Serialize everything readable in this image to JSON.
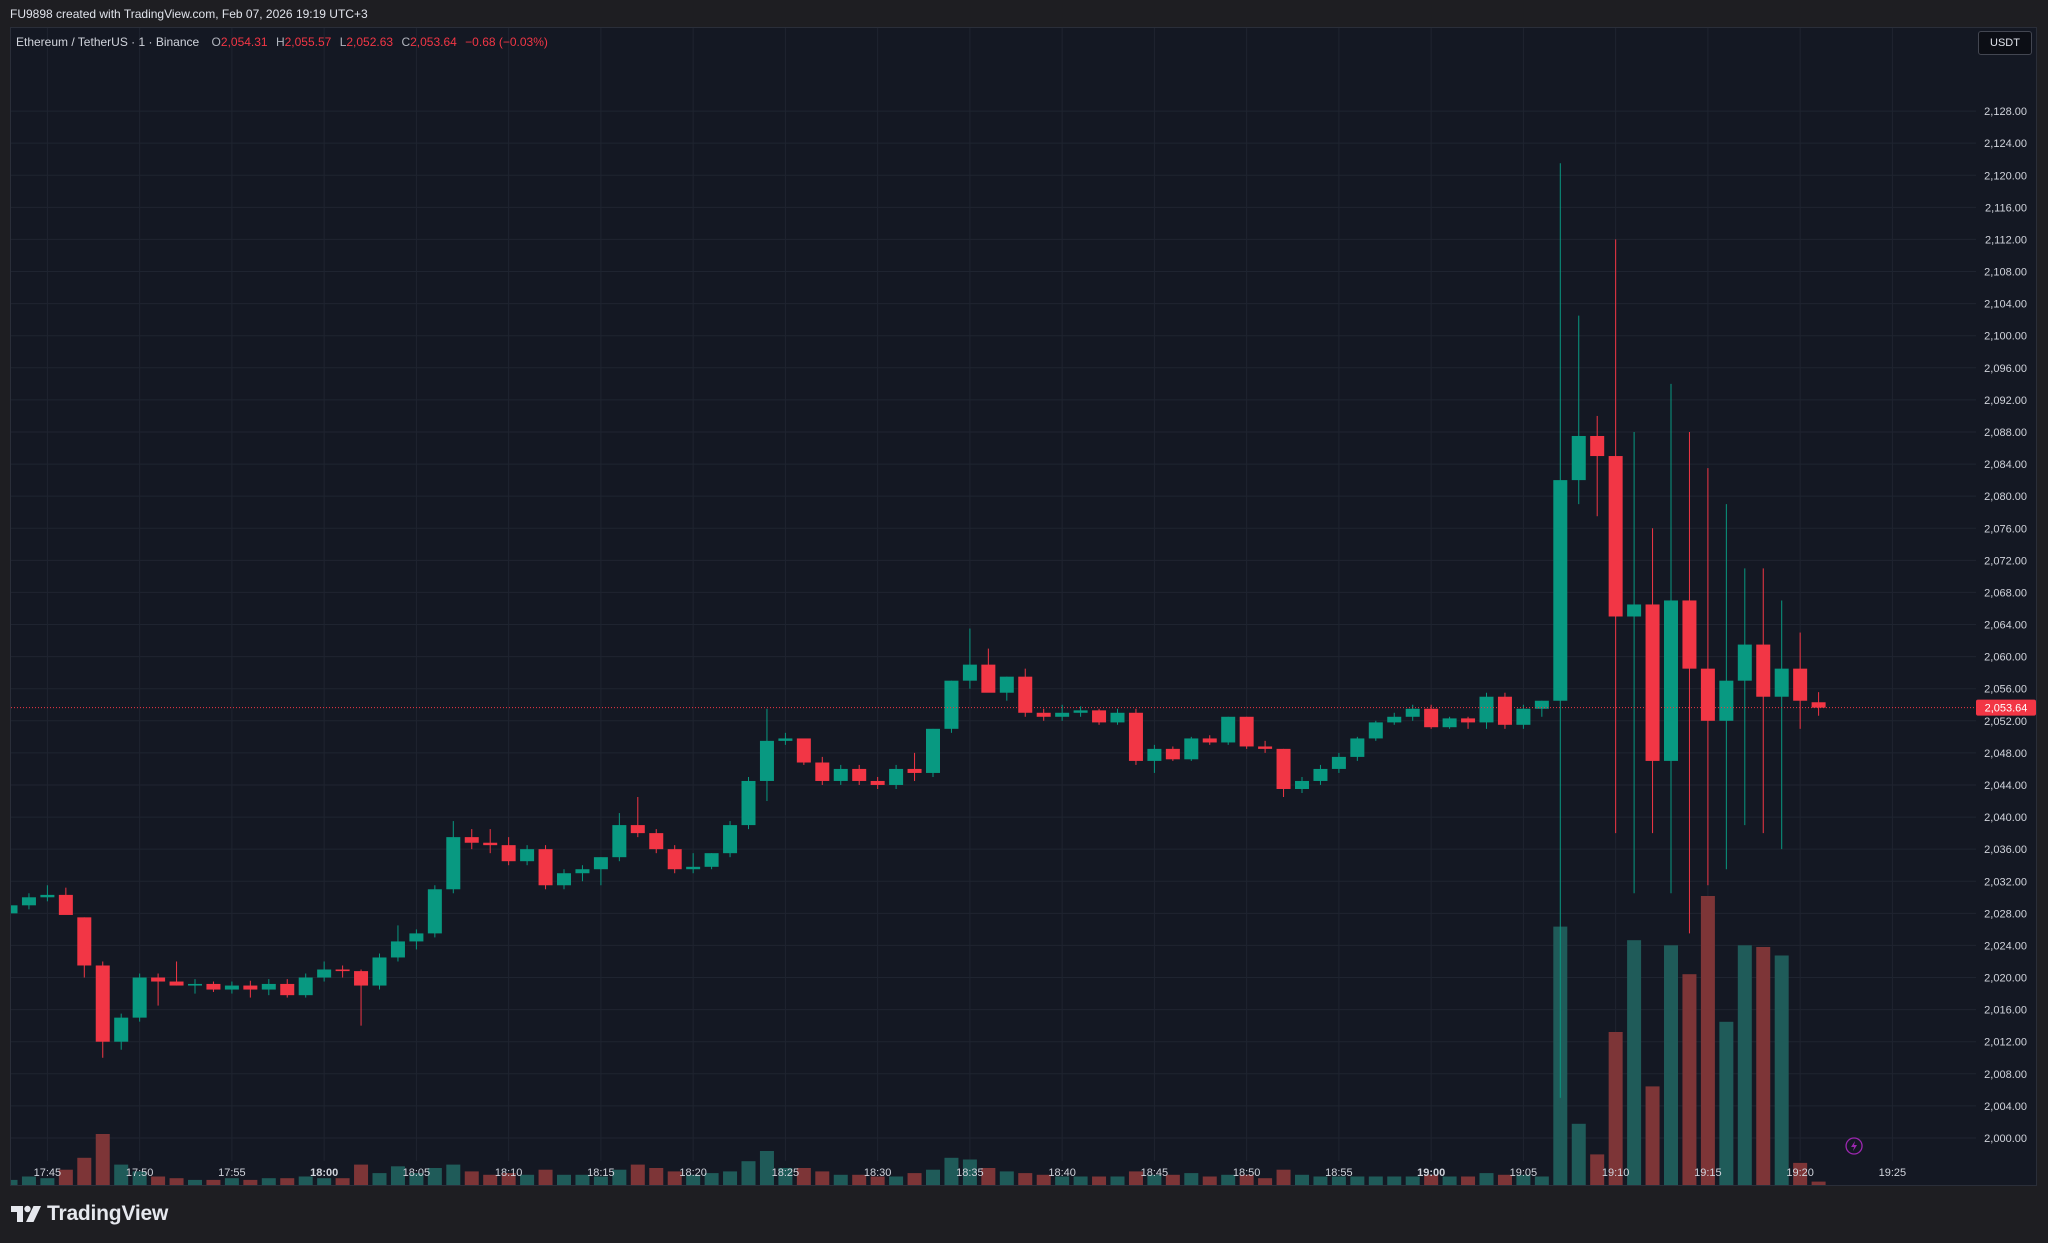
{
  "header": {
    "caption": "FU9898 created with TradingView.com, Feb 07, 2026 19:19 UTC+3"
  },
  "legend": {
    "symbol": "Ethereum / TetherUS · 1 · Binance",
    "o_label": "O",
    "o_value": "2,054.31",
    "h_label": "H",
    "h_value": "2,055.57",
    "l_label": "L",
    "l_value": "2,052.63",
    "c_label": "C",
    "c_value": "2,053.64",
    "change": "−0.68 (−0.03%)"
  },
  "currency_button": "USDT",
  "footer": {
    "brand": "TradingView"
  },
  "colors": {
    "up": "#089981",
    "down": "#f23645",
    "up_volume": "#1f5b59",
    "down_volume": "#7d3537",
    "background": "#141823",
    "grid": "#1f2430"
  },
  "chart_data": {
    "type": "candlestick",
    "interval": "1 minute",
    "x_start": "17:43",
    "y_axis": {
      "min": 1999,
      "max": 2131,
      "step": 4,
      "side": "right"
    },
    "y_ticks": [
      "2,128.00",
      "2,124.00",
      "2,120.00",
      "2,116.00",
      "2,112.00",
      "2,108.00",
      "2,104.00",
      "2,100.00",
      "2,096.00",
      "2,092.00",
      "2,088.00",
      "2,084.00",
      "2,080.00",
      "2,076.00",
      "2,072.00",
      "2,068.00",
      "2,064.00",
      "2,060.00",
      "2,056.00",
      "2,052.00",
      "2,048.00",
      "2,044.00",
      "2,040.00",
      "2,036.00",
      "2,032.00",
      "2,028.00",
      "2,024.00",
      "2,020.00",
      "2,016.00",
      "2,012.00",
      "2,008.00",
      "2,004.00",
      "2,000.00"
    ],
    "x_ticks": [
      {
        "t": "17:45",
        "i": 2,
        "bold": false
      },
      {
        "t": "17:50",
        "i": 7,
        "bold": false
      },
      {
        "t": "17:55",
        "i": 12,
        "bold": false
      },
      {
        "t": "18:00",
        "i": 17,
        "bold": true
      },
      {
        "t": "18:05",
        "i": 22,
        "bold": false
      },
      {
        "t": "18:10",
        "i": 27,
        "bold": false
      },
      {
        "t": "18:15",
        "i": 32,
        "bold": false
      },
      {
        "t": "18:20",
        "i": 37,
        "bold": false
      },
      {
        "t": "18:25",
        "i": 42,
        "bold": false
      },
      {
        "t": "18:30",
        "i": 47,
        "bold": false
      },
      {
        "t": "18:35",
        "i": 52,
        "bold": false
      },
      {
        "t": "18:40",
        "i": 57,
        "bold": false
      },
      {
        "t": "18:45",
        "i": 62,
        "bold": false
      },
      {
        "t": "18:50",
        "i": 67,
        "bold": false
      },
      {
        "t": "18:55",
        "i": 72,
        "bold": false
      },
      {
        "t": "19:00",
        "i": 77,
        "bold": true
      },
      {
        "t": "19:05",
        "i": 82,
        "bold": false
      },
      {
        "t": "19:10",
        "i": 87,
        "bold": false
      },
      {
        "t": "19:15",
        "i": 92,
        "bold": false
      },
      {
        "t": "19:20",
        "i": 97,
        "bold": false
      },
      {
        "t": "19:25",
        "i": 102,
        "bold": false
      }
    ],
    "last_price": 2053.64,
    "last_price_label": "2,053.64",
    "candles": [
      [
        2028.0,
        2029.5,
        2027.5,
        2029.0,
        3
      ],
      [
        2029.0,
        2030.5,
        2028.5,
        2030.0,
        5
      ],
      [
        2030.0,
        2031.5,
        2029.5,
        2030.3,
        4
      ],
      [
        2030.3,
        2031.2,
        2028.0,
        2027.8,
        9
      ],
      [
        2027.5,
        2027.5,
        2020.0,
        2021.5,
        16
      ],
      [
        2021.5,
        2022.0,
        2010.0,
        2012.0,
        30
      ],
      [
        2012.0,
        2015.5,
        2011.0,
        2015.0,
        12
      ],
      [
        2015.0,
        2020.5,
        2014.5,
        2020.0,
        8
      ],
      [
        2020.0,
        2020.5,
        2016.5,
        2019.5,
        5
      ],
      [
        2019.5,
        2022.0,
        2019.0,
        2019.0,
        4
      ],
      [
        2019.0,
        2019.8,
        2018.0,
        2019.2,
        3
      ],
      [
        2019.2,
        2019.5,
        2018.2,
        2018.5,
        3
      ],
      [
        2018.5,
        2019.5,
        2018.0,
        2019.0,
        4
      ],
      [
        2019.0,
        2019.6,
        2017.5,
        2018.5,
        3
      ],
      [
        2018.5,
        2019.8,
        2017.8,
        2019.2,
        4
      ],
      [
        2019.2,
        2019.8,
        2017.5,
        2017.8,
        4
      ],
      [
        2017.8,
        2020.5,
        2017.5,
        2020.0,
        5
      ],
      [
        2020.0,
        2022.0,
        2019.5,
        2021.0,
        4
      ],
      [
        2021.0,
        2021.5,
        2020.0,
        2020.8,
        4
      ],
      [
        2020.8,
        2021.0,
        2014.0,
        2019.0,
        12
      ],
      [
        2019.0,
        2023.0,
        2018.5,
        2022.5,
        7
      ],
      [
        2022.5,
        2026.5,
        2022.0,
        2024.5,
        11
      ],
      [
        2024.5,
        2026.0,
        2023.5,
        2025.5,
        7
      ],
      [
        2025.5,
        2031.5,
        2025.0,
        2031.0,
        10
      ],
      [
        2031.0,
        2039.5,
        2030.5,
        2037.5,
        12
      ],
      [
        2037.5,
        2038.5,
        2036.0,
        2036.8,
        8
      ],
      [
        2036.8,
        2038.5,
        2035.5,
        2036.5,
        6
      ],
      [
        2036.5,
        2037.5,
        2034.0,
        2034.5,
        7
      ],
      [
        2034.5,
        2036.5,
        2034.0,
        2036.0,
        6
      ],
      [
        2036.0,
        2036.5,
        2031.0,
        2031.5,
        9
      ],
      [
        2031.5,
        2033.5,
        2031.0,
        2033.0,
        6
      ],
      [
        2033.0,
        2034.0,
        2032.0,
        2033.5,
        6
      ],
      [
        2033.5,
        2035.0,
        2031.5,
        2035.0,
        5
      ],
      [
        2035.0,
        2040.5,
        2034.5,
        2039.0,
        9
      ],
      [
        2039.0,
        2042.5,
        2037.5,
        2038.0,
        12
      ],
      [
        2038.0,
        2038.5,
        2035.5,
        2036.0,
        10
      ],
      [
        2036.0,
        2036.5,
        2033.0,
        2033.5,
        8
      ],
      [
        2033.5,
        2035.5,
        2033.0,
        2033.8,
        6
      ],
      [
        2033.8,
        2035.5,
        2033.5,
        2035.5,
        7
      ],
      [
        2035.5,
        2039.5,
        2035.0,
        2039.0,
        8
      ],
      [
        2039.0,
        2045.0,
        2038.5,
        2044.5,
        14
      ],
      [
        2044.5,
        2053.5,
        2042.0,
        2049.5,
        20
      ],
      [
        2049.5,
        2050.5,
        2049.0,
        2049.8,
        10
      ],
      [
        2049.8,
        2049.5,
        2046.5,
        2046.8,
        10
      ],
      [
        2046.8,
        2047.5,
        2044.0,
        2044.5,
        8
      ],
      [
        2044.5,
        2046.5,
        2044.0,
        2046.0,
        6
      ],
      [
        2046.0,
        2046.5,
        2044.0,
        2044.5,
        6
      ],
      [
        2044.5,
        2045.0,
        2043.5,
        2044.0,
        5
      ],
      [
        2044.0,
        2046.5,
        2043.5,
        2046.0,
        5
      ],
      [
        2046.0,
        2048.0,
        2044.5,
        2045.5,
        7
      ],
      [
        2045.5,
        2051.0,
        2045.0,
        2051.0,
        9
      ],
      [
        2051.0,
        2057.0,
        2050.5,
        2057.0,
        16
      ],
      [
        2057.0,
        2063.5,
        2056.0,
        2059.0,
        15
      ],
      [
        2059.0,
        2061.0,
        2056.0,
        2055.5,
        10
      ],
      [
        2055.5,
        2057.5,
        2054.5,
        2057.5,
        8
      ],
      [
        2057.5,
        2058.5,
        2052.5,
        2053.0,
        7
      ],
      [
        2053.0,
        2053.5,
        2052.0,
        2052.5,
        6
      ],
      [
        2052.5,
        2054.0,
        2052.0,
        2053.0,
        5
      ],
      [
        2053.0,
        2053.8,
        2052.5,
        2053.3,
        5
      ],
      [
        2053.3,
        2053.5,
        2051.5,
        2051.8,
        5
      ],
      [
        2051.8,
        2053.5,
        2051.5,
        2053.0,
        5
      ],
      [
        2053.0,
        2053.5,
        2046.5,
        2047.0,
        8
      ],
      [
        2047.0,
        2049.0,
        2045.5,
        2048.5,
        6
      ],
      [
        2048.5,
        2048.8,
        2047.0,
        2047.2,
        6
      ],
      [
        2047.2,
        2050.0,
        2047.0,
        2049.8,
        7
      ],
      [
        2049.8,
        2050.2,
        2049.0,
        2049.3,
        5
      ],
      [
        2049.3,
        2052.5,
        2049.0,
        2052.5,
        6
      ],
      [
        2052.5,
        2052.5,
        2048.5,
        2048.8,
        6
      ],
      [
        2048.8,
        2049.5,
        2048.0,
        2048.5,
        4
      ],
      [
        2048.5,
        2048.5,
        2042.5,
        2043.5,
        9
      ],
      [
        2043.5,
        2045.0,
        2043.0,
        2044.5,
        6
      ],
      [
        2044.5,
        2046.5,
        2044.0,
        2046.0,
        5
      ],
      [
        2046.0,
        2048.0,
        2045.5,
        2047.5,
        5
      ],
      [
        2047.5,
        2050.0,
        2047.0,
        2049.8,
        5
      ],
      [
        2049.8,
        2052.0,
        2049.5,
        2051.8,
        5
      ],
      [
        2051.8,
        2053.0,
        2051.5,
        2052.5,
        5
      ],
      [
        2052.5,
        2054.0,
        2052.0,
        2053.5,
        5
      ],
      [
        2053.5,
        2054.0,
        2051.0,
        2051.2,
        6
      ],
      [
        2051.2,
        2052.5,
        2051.0,
        2052.3,
        5
      ],
      [
        2052.3,
        2052.5,
        2051.0,
        2051.8,
        5
      ],
      [
        2051.8,
        2055.5,
        2051.0,
        2055.0,
        7
      ],
      [
        2055.0,
        2055.5,
        2051.0,
        2051.5,
        6
      ],
      [
        2051.5,
        2054.0,
        2051.0,
        2053.5,
        6
      ],
      [
        2053.5,
        2054.5,
        2052.5,
        2054.5,
        5
      ],
      [
        2054.5,
        2121.5,
        2005.0,
        2082.0,
        152
      ],
      [
        2082.0,
        2102.5,
        2079.0,
        2087.5,
        36
      ],
      [
        2087.5,
        2090.0,
        2077.5,
        2085.0,
        18
      ],
      [
        2085.0,
        2112.0,
        2038.0,
        2065.0,
        90
      ],
      [
        2065.0,
        2088.0,
        2030.5,
        2066.5,
        144
      ],
      [
        2066.5,
        2076.0,
        2038.0,
        2047.0,
        58
      ],
      [
        2047.0,
        2094.0,
        2030.5,
        2067.0,
        141
      ],
      [
        2067.0,
        2088.0,
        2025.5,
        2058.5,
        124
      ],
      [
        2058.5,
        2083.5,
        2031.5,
        2052.0,
        170
      ],
      [
        2052.0,
        2079.0,
        2033.5,
        2057.0,
        96
      ],
      [
        2057.0,
        2071.0,
        2039.0,
        2061.5,
        141
      ],
      [
        2061.5,
        2071.0,
        2038.0,
        2055.0,
        140
      ],
      [
        2055.0,
        2067.0,
        2036.0,
        2058.5,
        135
      ],
      [
        2058.5,
        2063.0,
        2051.0,
        2054.5,
        13
      ],
      [
        2054.31,
        2055.57,
        2052.63,
        2053.64,
        2
      ]
    ]
  }
}
